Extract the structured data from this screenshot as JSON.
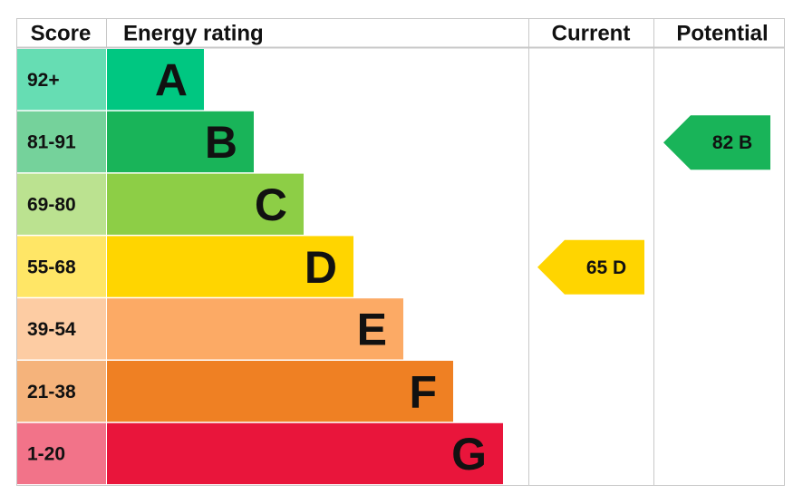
{
  "header": {
    "score": "Score",
    "energy_rating": "Energy rating",
    "current": "Current",
    "potential": "Potential"
  },
  "bands": [
    {
      "score": "92+",
      "letter": "A",
      "color": "#00c781"
    },
    {
      "score": "81-91",
      "letter": "B",
      "color": "#19b459"
    },
    {
      "score": "69-80",
      "letter": "C",
      "color": "#8dce46"
    },
    {
      "score": "55-68",
      "letter": "D",
      "color": "#ffd500"
    },
    {
      "score": "39-54",
      "letter": "E",
      "color": "#fcaa65"
    },
    {
      "score": "21-38",
      "letter": "F",
      "color": "#ef8023"
    },
    {
      "score": "1-20",
      "letter": "G",
      "color": "#e9153b"
    }
  ],
  "current": {
    "score": 65,
    "letter": "D"
  },
  "potential": {
    "score": 82,
    "letter": "B"
  }
}
